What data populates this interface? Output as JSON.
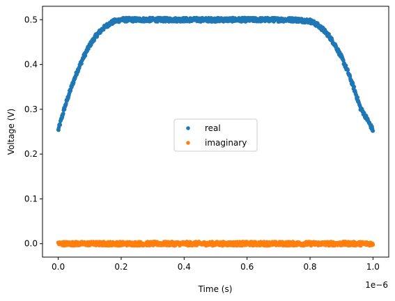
{
  "chart_data": {
    "type": "scatter",
    "title": "",
    "xlabel": "Time (s)",
    "ylabel": "Voltage (V)",
    "x_offset_label": "1e−6",
    "xlim": [
      -0.05,
      1.05
    ],
    "ylim": [
      -0.03,
      0.53
    ],
    "xticks": [
      0.0,
      0.2,
      0.4,
      0.6,
      0.8,
      1.0
    ],
    "xtick_labels": [
      "0.0",
      "0.2",
      "0.4",
      "0.6",
      "0.8",
      "1.0"
    ],
    "yticks": [
      0.0,
      0.1,
      0.2,
      0.3,
      0.4,
      0.5
    ],
    "ytick_labels": [
      "0.0",
      "0.1",
      "0.2",
      "0.3",
      "0.4",
      "0.5"
    ],
    "grid": false,
    "legend_position": "center",
    "series": [
      {
        "name": "real",
        "color": "#1f77b4",
        "x": [
          0.0,
          0.02,
          0.04,
          0.06,
          0.08,
          0.1,
          0.12,
          0.14,
          0.16,
          0.18,
          0.2,
          0.25,
          0.3,
          0.35,
          0.4,
          0.45,
          0.5,
          0.55,
          0.6,
          0.65,
          0.7,
          0.75,
          0.8,
          0.82,
          0.84,
          0.86,
          0.88,
          0.9,
          0.92,
          0.94,
          0.96,
          0.98,
          1.0
        ],
        "y": [
          0.253,
          0.303,
          0.346,
          0.384,
          0.416,
          0.443,
          0.464,
          0.479,
          0.49,
          0.497,
          0.5,
          0.5,
          0.5,
          0.5,
          0.5,
          0.5,
          0.5,
          0.5,
          0.5,
          0.5,
          0.5,
          0.5,
          0.497,
          0.49,
          0.479,
          0.464,
          0.443,
          0.416,
          0.384,
          0.346,
          0.303,
          0.28,
          0.253
        ]
      },
      {
        "name": "imaginary",
        "color": "#ff7f0e",
        "x": [
          0.0,
          0.1,
          0.2,
          0.3,
          0.4,
          0.5,
          0.6,
          0.7,
          0.8,
          0.9,
          1.0
        ],
        "y": [
          0.0,
          0.0,
          0.0,
          0.0,
          0.0,
          0.0,
          0.0,
          0.0,
          0.0,
          0.0,
          0.0
        ]
      }
    ]
  }
}
